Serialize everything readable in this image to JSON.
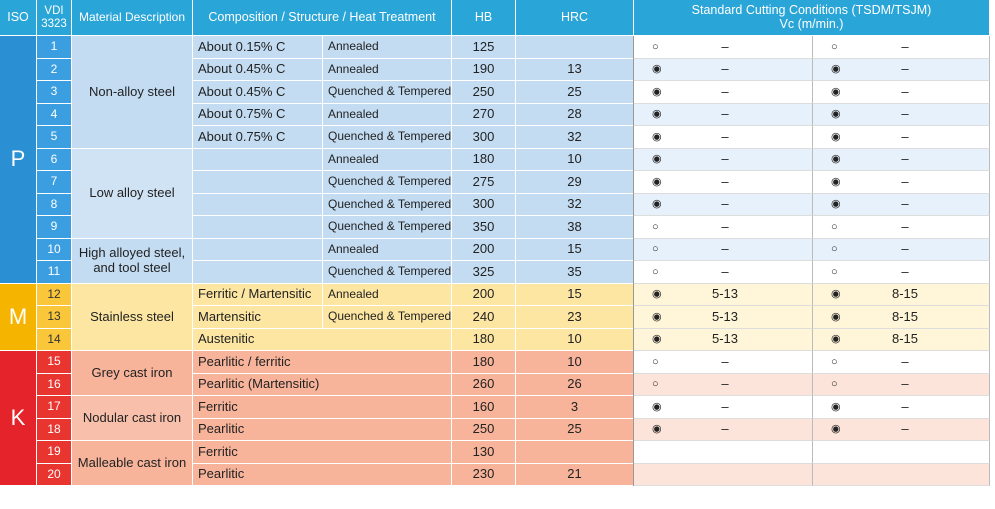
{
  "header": {
    "iso": "ISO",
    "vdi": [
      "VDI",
      "3323"
    ],
    "material": "Material Description",
    "composition": "Composition / Structure / Heat Treatment",
    "hb": "HB",
    "hrc": "HRC",
    "conditions": [
      "Standard Cutting Conditions (TSDM/TSJM)",
      "Vc (m/min.)"
    ]
  },
  "groups": [
    {
      "iso": "P",
      "materials": [
        {
          "name": [
            "Non-alloy steel"
          ],
          "rows": [
            {
              "vdi": "1",
              "composition": "About 0.15% C",
              "treatment": "Annealed",
              "hb": "125",
              "tsdm": [
                "○",
                "–"
              ],
              "tsjm": [
                "○",
                "–"
              ]
            },
            {
              "vdi": "2",
              "composition": "About 0.45% C",
              "treatment": "Annealed",
              "hb": "190",
              "hrc": "13",
              "tsdm": [
                "◉",
                "–"
              ],
              "tsjm": [
                "◉",
                "–"
              ]
            },
            {
              "vdi": "3",
              "composition": "About 0.45% C",
              "treatment": "Quenched & Tempered",
              "hb": "250",
              "hrc": "25",
              "tsdm": [
                "◉",
                "–"
              ],
              "tsjm": [
                "◉",
                "–"
              ]
            },
            {
              "vdi": "4",
              "composition": "About 0.75% C",
              "treatment": "Annealed",
              "hb": "270",
              "hrc": "28",
              "tsdm": [
                "◉",
                "–"
              ],
              "tsjm": [
                "◉",
                "–"
              ]
            },
            {
              "vdi": "5",
              "composition": "About 0.75% C",
              "treatment": "Quenched & Tempered",
              "hb": "300",
              "hrc": "32",
              "tsdm": [
                "◉",
                "–"
              ],
              "tsjm": [
                "◉",
                "–"
              ]
            }
          ]
        },
        {
          "name": [
            "Low alloy steel"
          ],
          "rows": [
            {
              "vdi": "6",
              "treatment": "Annealed",
              "hb": "180",
              "hrc": "10",
              "tsdm": [
                "◉",
                "–"
              ],
              "tsjm": [
                "◉",
                "–"
              ]
            },
            {
              "vdi": "7",
              "treatment": "Quenched & Tempered",
              "hb": "275",
              "hrc": "29",
              "tsdm": [
                "◉",
                "–"
              ],
              "tsjm": [
                "◉",
                "–"
              ]
            },
            {
              "vdi": "8",
              "treatment": "Quenched & Tempered",
              "hb": "300",
              "hrc": "32",
              "tsdm": [
                "◉",
                "–"
              ],
              "tsjm": [
                "◉",
                "–"
              ]
            },
            {
              "vdi": "9",
              "treatment": "Quenched & Tempered",
              "hb": "350",
              "hrc": "38",
              "tsdm": [
                "○",
                "–"
              ],
              "tsjm": [
                "○",
                "–"
              ]
            }
          ]
        },
        {
          "name": [
            "High alloyed steel,",
            "and tool steel"
          ],
          "rows": [
            {
              "vdi": "10",
              "treatment": "Annealed",
              "hb": "200",
              "hrc": "15",
              "tsdm": [
                "○",
                "–"
              ],
              "tsjm": [
                "○",
                "–"
              ]
            },
            {
              "vdi": "11",
              "treatment": "Quenched & Tempered",
              "hb": "325",
              "hrc": "35",
              "tsdm": [
                "○",
                "–"
              ],
              "tsjm": [
                "○",
                "–"
              ]
            }
          ]
        }
      ]
    },
    {
      "iso": "M",
      "materials": [
        {
          "name": [
            "Stainless steel"
          ],
          "rows": [
            {
              "vdi": "12",
              "composition": "Ferritic / Martensitic",
              "treatment": "Annealed",
              "hb": "200",
              "hrc": "15",
              "tsdm": [
                "◉",
                "5-13"
              ],
              "tsjm": [
                "◉",
                "8-15"
              ]
            },
            {
              "vdi": "13",
              "composition": "Martensitic",
              "treatment": "Quenched & Tempered",
              "hb": "240",
              "hrc": "23",
              "tsdm": [
                "◉",
                "5-13"
              ],
              "tsjm": [
                "◉",
                "8-15"
              ]
            },
            {
              "vdi": "14",
              "composition": "Austenitic",
              "hb": "180",
              "hrc": "10",
              "tsdm": [
                "◉",
                "5-13"
              ],
              "tsjm": [
                "◉",
                "8-15"
              ]
            }
          ]
        }
      ]
    },
    {
      "iso": "K",
      "materials": [
        {
          "name": [
            "Grey cast iron"
          ],
          "rows": [
            {
              "vdi": "15",
              "composition": "Pearlitic / ferritic",
              "hb": "180",
              "hrc": "10",
              "tsdm": [
                "○",
                "–"
              ],
              "tsjm": [
                "○",
                "–"
              ]
            },
            {
              "vdi": "16",
              "composition": "Pearlitic (Martensitic)",
              "hb": "260",
              "hrc": "26",
              "tsdm": [
                "○",
                "–"
              ],
              "tsjm": [
                "○",
                "–"
              ]
            }
          ]
        },
        {
          "name": [
            "Nodular cast iron"
          ],
          "rows": [
            {
              "vdi": "17",
              "composition": "Ferritic",
              "hb": "160",
              "hrc": "3",
              "tsdm": [
                "◉",
                "–"
              ],
              "tsjm": [
                "◉",
                "–"
              ]
            },
            {
              "vdi": "18",
              "composition": "Pearlitic",
              "hb": "250",
              "hrc": "25",
              "tsdm": [
                "◉",
                "–"
              ],
              "tsjm": [
                "◉",
                "–"
              ]
            }
          ]
        },
        {
          "name": [
            "Malleable cast iron"
          ],
          "rows": [
            {
              "vdi": "19",
              "composition": "Ferritic",
              "hb": "130"
            },
            {
              "vdi": "20",
              "composition": "Pearlitic",
              "hb": "230",
              "hrc": "21"
            }
          ]
        }
      ]
    }
  ]
}
